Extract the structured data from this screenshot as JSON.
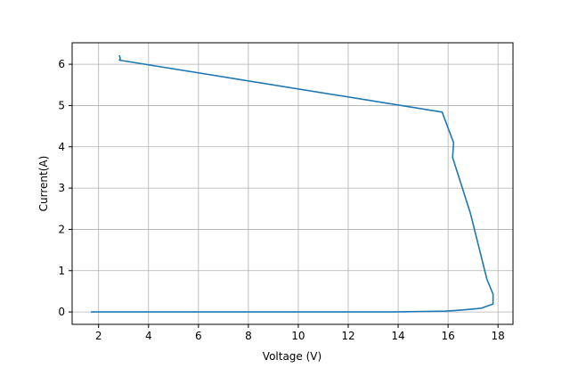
{
  "chart_data": {
    "type": "line",
    "title": "",
    "xlabel": "Voltage (V)",
    "ylabel": "Current(A)",
    "xlim": [
      0.94,
      18.6
    ],
    "ylim": [
      -0.3,
      6.52
    ],
    "xticks": [
      2,
      4,
      6,
      8,
      10,
      12,
      14,
      16,
      18
    ],
    "yticks": [
      0,
      1,
      2,
      3,
      4,
      5,
      6
    ],
    "grid": true,
    "series": [
      {
        "color": "#1f77b4",
        "x": [
          2.83,
          2.87,
          2.83,
          15.76,
          16.22,
          16.18,
          16.9,
          17.55,
          17.8,
          17.8,
          17.33,
          16.6,
          15.9,
          13.8,
          8.0,
          1.69
        ],
        "y": [
          6.22,
          6.13,
          6.1,
          4.84,
          4.1,
          3.74,
          2.38,
          0.8,
          0.43,
          0.19,
          0.09,
          0.05,
          0.02,
          0.0,
          0.0,
          0.0
        ]
      }
    ]
  }
}
